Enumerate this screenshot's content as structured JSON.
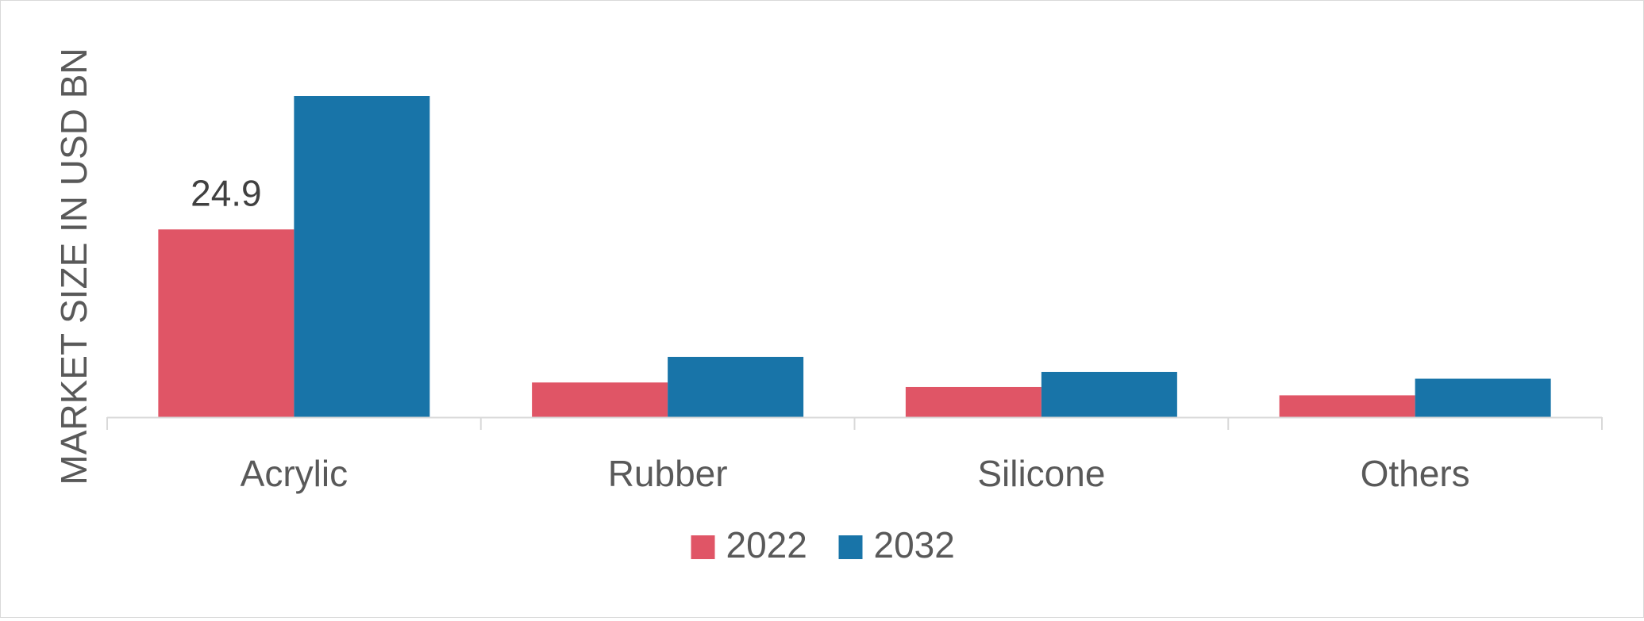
{
  "chart_data": {
    "type": "bar",
    "title": "",
    "xlabel": "",
    "ylabel": "MARKET SIZE IN USD BN",
    "categories": [
      "Acrylic",
      "Rubber",
      "Silicone",
      "Others"
    ],
    "series": [
      {
        "name": "2022",
        "color": "#e05566",
        "values": [
          24.9,
          4.6,
          4.0,
          2.9
        ]
      },
      {
        "name": "2032",
        "color": "#1874a8",
        "values": [
          42.6,
          8.0,
          6.0,
          5.1
        ]
      }
    ],
    "data_labels": [
      {
        "series": 0,
        "category": 0,
        "text": "24.9"
      }
    ],
    "ylim": [
      0,
      50
    ],
    "grid": false,
    "legend_position": "bottom-center",
    "axis_color": "#d9d9d9",
    "text_color": "#595959"
  }
}
